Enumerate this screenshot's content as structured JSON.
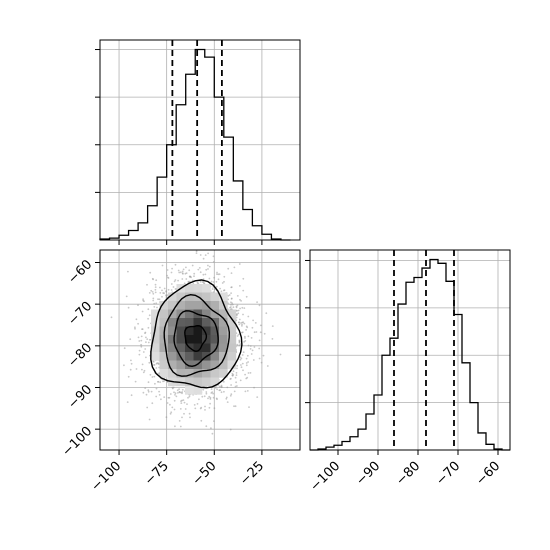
{
  "chart_data": {
    "type": "corner",
    "grid": true,
    "colors": {
      "line": "#000000",
      "grid": "#b0b0b0",
      "scatter": "#9a9a9a"
    },
    "panels": [
      {
        "type": "histogram",
        "variable": "x",
        "xlim": [
          -110,
          -5
        ],
        "bin_edges": [
          -110,
          -105,
          -100,
          -95,
          -90,
          -85,
          -80,
          -75,
          -70,
          -65,
          -60,
          -55,
          -50,
          -45,
          -40,
          -35,
          -30,
          -25,
          -20,
          -15,
          -10
        ],
        "counts": [
          1,
          2,
          5,
          10,
          18,
          36,
          66,
          100,
          142,
          174,
          200,
          192,
          150,
          108,
          62,
          32,
          15,
          6,
          1,
          0
        ],
        "quantiles": [
          -72,
          -59,
          -46
        ]
      },
      {
        "type": "scatter_density",
        "xlim": [
          -110,
          -5
        ],
        "ylim": [
          -105,
          -57
        ],
        "xticks": [
          -100,
          -75,
          -50,
          -25
        ],
        "yticks": [
          -60,
          -70,
          -80,
          -90,
          -100
        ],
        "center": [
          -60,
          -78
        ],
        "sigma": [
          11,
          6
        ],
        "contour_levels": 4
      },
      {
        "type": "histogram",
        "variable": "y",
        "xlim": [
          -107,
          -57
        ],
        "xticks": [
          -100,
          -90,
          -80,
          -70,
          -60
        ],
        "bin_edges": [
          -107,
          -105,
          -103,
          -101,
          -99,
          -97,
          -95,
          -93,
          -91,
          -89,
          -87,
          -85,
          -83,
          -81,
          -79,
          -77,
          -75,
          -73,
          -71,
          -69,
          -67,
          -65,
          -63,
          -61,
          -59,
          -57
        ],
        "counts": [
          0,
          1,
          3,
          5,
          9,
          14,
          22,
          38,
          58,
          100,
          118,
          154,
          177,
          182,
          192,
          201,
          197,
          178,
          143,
          92,
          50,
          18,
          6,
          1,
          0
        ],
        "quantiles": [
          -86,
          -78,
          -71
        ]
      }
    ]
  }
}
